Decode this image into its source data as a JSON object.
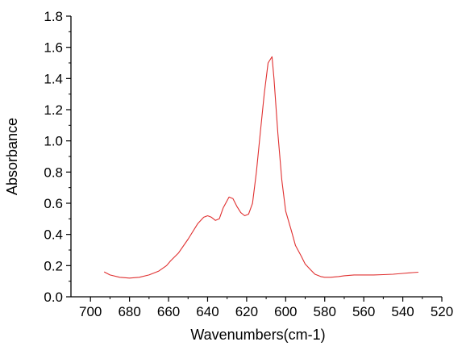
{
  "chart_data": {
    "type": "line",
    "title": "",
    "xlabel": "Wavenumbers(cm-1)",
    "ylabel": "Absorbance",
    "xlim": [
      710,
      520
    ],
    "ylim": [
      0.0,
      1.8
    ],
    "x_ticks": [
      700,
      680,
      660,
      640,
      620,
      600,
      580,
      560,
      540,
      520
    ],
    "x_tick_labels": [
      "700",
      "680",
      "660",
      "640",
      "620",
      "600",
      "580",
      "560",
      "540",
      "520"
    ],
    "y_ticks": [
      0.0,
      0.2,
      0.4,
      0.6,
      0.8,
      1.0,
      1.2,
      1.4,
      1.6,
      1.8
    ],
    "y_tick_labels": [
      "0.0",
      "0.2",
      "0.4",
      "0.6",
      "0.8",
      "1.0",
      "1.2",
      "1.4",
      "1.6",
      "1.8"
    ],
    "grid": false,
    "legend": "none",
    "series": [
      {
        "color": "#e03030",
        "x": [
          693,
          690,
          685,
          680,
          675,
          670,
          665,
          661,
          659,
          655,
          650,
          645,
          642,
          640,
          638,
          636,
          634,
          632,
          629,
          627,
          625,
          623,
          621,
          619,
          617,
          615,
          613,
          611,
          609,
          607,
          606,
          604,
          602,
          600,
          597,
          595,
          592,
          590,
          587,
          585,
          582,
          580,
          577,
          573,
          570,
          565,
          560,
          555,
          550,
          545,
          540,
          535,
          532
        ],
        "y": [
          0.16,
          0.14,
          0.125,
          0.12,
          0.125,
          0.14,
          0.165,
          0.2,
          0.23,
          0.28,
          0.37,
          0.47,
          0.51,
          0.52,
          0.51,
          0.49,
          0.5,
          0.57,
          0.64,
          0.63,
          0.58,
          0.54,
          0.52,
          0.53,
          0.6,
          0.8,
          1.05,
          1.3,
          1.5,
          1.54,
          1.4,
          1.05,
          0.75,
          0.55,
          0.42,
          0.33,
          0.26,
          0.21,
          0.17,
          0.145,
          0.13,
          0.125,
          0.125,
          0.13,
          0.135,
          0.14,
          0.14,
          0.14,
          0.142,
          0.145,
          0.15,
          0.155,
          0.158
        ]
      }
    ]
  }
}
